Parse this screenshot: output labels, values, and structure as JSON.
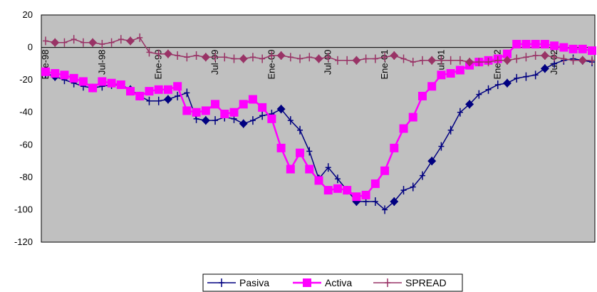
{
  "chart_data": {
    "type": "line",
    "title": "",
    "xlabel": "",
    "ylabel": "",
    "ylim": [
      -120,
      20
    ],
    "yticks": [
      20,
      0,
      -20,
      -40,
      -60,
      -80,
      -100,
      -120
    ],
    "grid": false,
    "plot_background": "#c0c0c0",
    "legend_position": "bottom-center",
    "x_start": "Ene-98",
    "x_end": "Jul-02",
    "x_tick_labels": [
      "Ene-98",
      "Jul-98",
      "Ene-99",
      "Jul-99",
      "Ene-00",
      "Jul-00",
      "Ene-01",
      "Jul-01",
      "Ene-02",
      "Jul-02"
    ],
    "series": [
      {
        "name": "Pasiva",
        "color": "#000080",
        "marker": "plus-diamond",
        "values": [
          -16,
          -18,
          -20,
          -22,
          -24,
          -25,
          -24,
          -23,
          -23,
          -26,
          -30,
          -33,
          -33,
          -32,
          -30,
          -28,
          -44,
          -45,
          -45,
          -43,
          -44,
          -47,
          -45,
          -42,
          -41,
          -38,
          -45,
          -51,
          -64,
          -81,
          -74,
          -81,
          -88,
          -95,
          -95,
          -95,
          -100,
          -95,
          -88,
          -86,
          -79,
          -70,
          -61,
          -51,
          -40,
          -35,
          -29,
          -26,
          -23,
          -22,
          -19,
          -18,
          -17,
          -13,
          -10,
          -8,
          -7,
          -8,
          -9
        ]
      },
      {
        "name": "Activa",
        "color": "#ff00ff",
        "marker": "square",
        "values": [
          -15,
          -16,
          -17,
          -19,
          -21,
          -25,
          -21,
          -22,
          -23,
          -27,
          -30,
          -27,
          -26,
          -26,
          -24,
          -39,
          -40,
          -39,
          -35,
          -41,
          -40,
          -35,
          -32,
          -37,
          -44,
          -62,
          -75,
          -65,
          -75,
          -82,
          -88,
          -87,
          -88,
          -92,
          -91,
          -84,
          -76,
          -62,
          -50,
          -43,
          -30,
          -24,
          -17,
          -16,
          -14,
          -11,
          -9,
          -8,
          -7,
          -4,
          2,
          2,
          2,
          2,
          1,
          0,
          -1,
          -1,
          -2
        ]
      },
      {
        "name": "SPREAD",
        "color": "#993366",
        "marker": "plus-diamond",
        "values": [
          4,
          3,
          3,
          5,
          3,
          3,
          2,
          3,
          5,
          4,
          6,
          -3,
          -4,
          -4,
          -5,
          -6,
          -5,
          -6,
          -6,
          -6,
          -7,
          -7,
          -6,
          -7,
          -5,
          -5,
          -6,
          -7,
          -6,
          -7,
          -6,
          -8,
          -8,
          -8,
          -7,
          -7,
          -6,
          -5,
          -7,
          -9,
          -8,
          -8,
          -8,
          -8,
          -8,
          -9,
          -9,
          -9,
          -8,
          -8,
          -7,
          -6,
          -5,
          -5,
          -6,
          -7,
          -8,
          -8,
          -8
        ]
      }
    ]
  }
}
